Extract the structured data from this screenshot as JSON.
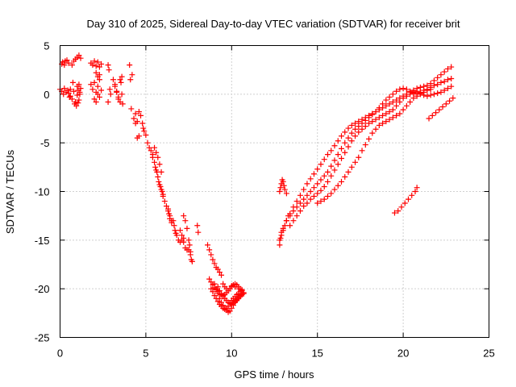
{
  "chart_data": {
    "type": "scatter",
    "title": "Day 310 of 2025, Sidereal Day-to-day VTEC variation (SDTVAR) for receiver brit",
    "xlabel": "GPS time / hours",
    "ylabel": "SDTVAR / TECUs",
    "xlim": [
      0,
      25
    ],
    "ylim": [
      -25,
      5
    ],
    "xticks": [
      0,
      5,
      10,
      15,
      20,
      25
    ],
    "yticks": [
      5,
      0,
      -5,
      -10,
      -15,
      -20,
      -25
    ],
    "xtick_labels": [
      "0",
      "5",
      "10",
      "15",
      "20",
      "25"
    ],
    "ytick_labels": [
      "5",
      "0",
      "-5",
      "-10",
      "-15",
      "-20",
      "-25"
    ],
    "grid": true,
    "marker": "+",
    "color": "#ff0000",
    "series": [
      {
        "name": "SDTVAR",
        "x": [
          0.0,
          0.1,
          0.2,
          0.25,
          0.35,
          0.45,
          0.5,
          0.55,
          0.6,
          0.1,
          0.15,
          0.25,
          0.3,
          0.4,
          0.5,
          0.6,
          0.7,
          0.8,
          0.9,
          1.0,
          1.05,
          1.1,
          1.15,
          0.7,
          0.8,
          0.9,
          1.0,
          1.1,
          1.2,
          0.75,
          0.85,
          0.95,
          1.05,
          1.15,
          1.0,
          1.1,
          1.2,
          1.8,
          1.9,
          2.0,
          2.1,
          2.2,
          2.3,
          2.4,
          1.8,
          1.9,
          2.0,
          2.1,
          2.2,
          2.3,
          2.0,
          2.1,
          2.2,
          2.3,
          2.4,
          2.1,
          2.2,
          2.3,
          2.8,
          2.85,
          2.9,
          2.95,
          2.8,
          3.1,
          3.2,
          3.3,
          3.4,
          3.5,
          3.55,
          3.6,
          3.65,
          3.2,
          3.3,
          3.4,
          3.5,
          3.6,
          4.05,
          4.1,
          4.2,
          4.15,
          4.3,
          4.4,
          4.5,
          4.4,
          4.5,
          4.6,
          4.6,
          4.7,
          4.8,
          4.85,
          4.9,
          5.0,
          5.1,
          5.2,
          5.3,
          5.4,
          5.4,
          5.5,
          5.55,
          5.6,
          5.65,
          5.7,
          5.75,
          5.8,
          5.85,
          5.9,
          5.95,
          6.0,
          5.5,
          5.6,
          5.7,
          5.8,
          5.9,
          6.0,
          6.1,
          6.2,
          6.3,
          6.35,
          6.4,
          6.5,
          6.3,
          6.4,
          6.5,
          6.6,
          6.65,
          6.7,
          6.75,
          6.8,
          6.9,
          7.0,
          7.1,
          7.2,
          7.0,
          7.1,
          7.2,
          7.3,
          7.4,
          7.2,
          7.3,
          7.4,
          7.5,
          7.6,
          7.65,
          7.7,
          7.5,
          7.55,
          7.6,
          8.0,
          8.05,
          8.6,
          8.7,
          8.8,
          8.9,
          9.0,
          9.1,
          9.2,
          9.3,
          9.4,
          8.7,
          8.8,
          8.9,
          9.0,
          9.1,
          9.2,
          9.3,
          9.4,
          9.5,
          9.6,
          9.7,
          9.8,
          9.9,
          10.0,
          10.1,
          10.2,
          10.3,
          10.4,
          10.5,
          8.8,
          8.9,
          9.0,
          9.1,
          9.2,
          9.3,
          9.4,
          9.5,
          9.6,
          9.7,
          9.8,
          9.9,
          10.0,
          10.1,
          10.2,
          10.3,
          10.4,
          10.5,
          10.6,
          9.0,
          9.1,
          9.2,
          9.3,
          9.4,
          9.5,
          9.6,
          9.7,
          9.8,
          9.9,
          10.0,
          10.1,
          10.2,
          10.3,
          10.4,
          10.5,
          10.6,
          10.7,
          9.2,
          9.3,
          9.4,
          9.5,
          9.6,
          9.7,
          9.8,
          9.9,
          10.0,
          10.1,
          10.2,
          10.3,
          10.4,
          10.5,
          10.6,
          10.7,
          9.5,
          9.6,
          9.7,
          9.8,
          9.9,
          10.0,
          10.2,
          10.4,
          10.6,
          12.8,
          12.85,
          12.9,
          12.95,
          13.0,
          13.05,
          13.1,
          13.2,
          12.8,
          12.9,
          13.0,
          13.1,
          13.2,
          13.3,
          12.8,
          12.85,
          12.9,
          13.0,
          13.2,
          13.4,
          13.6,
          13.8,
          14.0,
          14.2,
          14.4,
          14.6,
          14.8,
          15.0,
          15.2,
          15.4,
          15.6,
          15.8,
          16.0,
          16.2,
          16.4,
          16.6,
          16.8,
          17.0,
          17.2,
          17.4,
          17.6,
          17.8,
          18.0,
          18.2,
          18.4,
          18.6,
          18.8,
          19.0,
          19.2,
          19.4,
          19.6,
          19.8,
          20.0,
          20.2,
          20.4,
          20.6,
          20.8,
          21.0,
          21.2,
          21.4,
          21.6,
          21.8,
          22.0,
          22.2,
          22.4,
          22.6,
          22.8,
          13.2,
          13.4,
          13.6,
          13.8,
          14.0,
          14.2,
          14.4,
          14.6,
          14.8,
          15.0,
          15.2,
          15.4,
          15.6,
          15.8,
          16.0,
          16.2,
          16.4,
          16.6,
          16.8,
          17.0,
          17.2,
          17.4,
          17.6,
          17.8,
          18.0,
          18.2,
          18.4,
          18.6,
          18.8,
          19.0,
          19.2,
          19.4,
          19.6,
          19.8,
          20.0,
          20.2,
          20.4,
          20.6,
          20.8,
          21.0,
          21.2,
          21.4,
          21.6,
          21.8,
          22.0,
          22.2,
          22.4,
          22.6,
          22.8,
          13.4,
          13.6,
          13.8,
          14.0,
          14.2,
          14.4,
          14.6,
          14.8,
          15.0,
          15.2,
          15.4,
          15.6,
          15.8,
          16.0,
          16.2,
          16.4,
          16.6,
          16.8,
          17.0,
          17.2,
          17.4,
          17.6,
          17.8,
          18.0,
          18.2,
          18.4,
          18.6,
          18.8,
          19.0,
          19.2,
          19.4,
          19.6,
          19.8,
          20.0,
          20.2,
          20.4,
          20.6,
          20.8,
          21.0,
          21.2,
          21.4,
          21.6,
          21.8,
          22.0,
          22.2,
          22.4,
          22.6,
          22.8,
          15.0,
          15.2,
          15.4,
          15.6,
          15.8,
          16.0,
          16.2,
          16.4,
          16.6,
          16.8,
          17.0,
          17.2,
          17.4,
          17.6,
          17.8,
          18.0,
          18.2,
          18.4,
          18.6,
          18.8,
          19.0,
          19.2,
          19.4,
          19.6,
          19.8,
          20.0,
          20.2,
          20.4,
          20.6,
          20.8,
          21.0,
          21.2,
          21.4,
          21.6,
          19.5,
          19.7,
          19.9,
          20.1,
          20.3,
          20.5,
          20.7,
          20.8,
          21.5,
          21.7,
          21.9,
          22.1,
          22.3,
          22.5,
          22.7,
          22.9
        ],
        "y": [
          0.5,
          0.3,
          0.0,
          0.6,
          0.2,
          0.4,
          0.1,
          -0.3,
          0.5,
          3.1,
          3.3,
          3.0,
          3.4,
          3.5,
          3.2,
          -0.2,
          -0.5,
          0.3,
          -0.8,
          -0.1,
          0.4,
          -0.6,
          0.2,
          3.0,
          3.4,
          3.6,
          3.8,
          4.0,
          3.7,
          1.2,
          -1.0,
          -1.2,
          -0.9,
          0.0,
          0.8,
          1.0,
          0.6,
          3.2,
          3.0,
          3.4,
          2.9,
          3.3,
          2.8,
          3.1,
          1.0,
          0.5,
          1.2,
          0.2,
          0.8,
          1.5,
          -0.5,
          -0.8,
          0.0,
          -0.3,
          0.4,
          2.2,
          1.8,
          2.0,
          3.0,
          2.5,
          0.5,
          0.0,
          -0.8,
          1.5,
          1.0,
          0.3,
          -0.5,
          -0.8,
          1.2,
          0.0,
          -1.0,
          0.8,
          0.2,
          -0.3,
          1.5,
          1.8,
          3.0,
          1.5,
          2.0,
          -1.5,
          -2.5,
          -3.0,
          -2.8,
          -2.0,
          -4.5,
          -4.3,
          -1.8,
          -2.2,
          -3.0,
          -3.5,
          -3.8,
          -4.2,
          -5.0,
          -5.5,
          -5.8,
          -6.2,
          -6.5,
          -7.0,
          -7.5,
          -7.8,
          -8.0,
          -8.5,
          -9.0,
          -9.3,
          -9.5,
          -9.8,
          -10.0,
          -10.3,
          -5.5,
          -6.0,
          -6.5,
          -7.2,
          -8.0,
          -10.5,
          -11.0,
          -11.5,
          -12.0,
          -12.3,
          -12.8,
          -13.0,
          -11.8,
          -12.5,
          -13.2,
          -13.0,
          -13.5,
          -14.0,
          -14.3,
          -14.5,
          -15.0,
          -15.2,
          -15.0,
          -14.8,
          -14.0,
          -14.5,
          -15.2,
          -15.8,
          -16.0,
          -12.5,
          -13.0,
          -13.8,
          -16.0,
          -16.5,
          -17.0,
          -17.2,
          -15.0,
          -15.5,
          -16.2,
          -13.5,
          -14.2,
          -15.5,
          -16.0,
          -16.5,
          -17.0,
          -17.4,
          -17.8,
          -18.0,
          -18.3,
          -18.6,
          -19.0,
          -19.3,
          -19.6,
          -19.9,
          -20.1,
          -20.3,
          -20.5,
          -20.6,
          -20.7,
          -20.6,
          -20.4,
          -20.2,
          -20.0,
          -19.8,
          -19.6,
          -19.5,
          -19.6,
          -19.8,
          -20.0,
          -20.0,
          -20.3,
          -20.7,
          -21.0,
          -21.3,
          -21.6,
          -21.8,
          -22.0,
          -22.1,
          -22.0,
          -21.8,
          -21.5,
          -21.2,
          -21.0,
          -20.8,
          -20.6,
          -20.5,
          -20.3,
          -20.1,
          -19.5,
          -20.0,
          -20.5,
          -21.0,
          -21.4,
          -21.7,
          -22.0,
          -22.2,
          -22.4,
          -22.3,
          -22.0,
          -21.7,
          -21.4,
          -21.2,
          -21.0,
          -20.8,
          -20.6,
          -20.4,
          -19.8,
          -20.2,
          -20.5,
          -20.8,
          -21.0,
          -21.2,
          -21.4,
          -21.5,
          -21.6,
          -21.5,
          -21.3,
          -21.1,
          -20.9,
          -20.7,
          -20.6,
          -20.5,
          -19.5,
          -19.8,
          -20.0,
          -20.2,
          -20.0,
          -19.7,
          -19.8,
          -20.0,
          -20.2,
          -10.0,
          -9.6,
          -9.2,
          -8.8,
          -9.0,
          -9.4,
          -9.8,
          -10.2,
          -15.0,
          -14.5,
          -14.0,
          -13.5,
          -13.0,
          -12.5,
          -15.5,
          -14.8,
          -14.2,
          -13.8,
          -13.0,
          -12.3,
          -11.6,
          -11.0,
          -10.4,
          -9.8,
          -9.2,
          -8.7,
          -8.2,
          -7.7,
          -7.2,
          -6.7,
          -6.2,
          -5.8,
          -5.3,
          -4.8,
          -4.3,
          -3.9,
          -3.5,
          -3.2,
          -3.0,
          -2.8,
          -2.6,
          -2.4,
          -2.2,
          -2.0,
          -1.8,
          -1.6,
          -1.4,
          -1.2,
          -1.0,
          -0.8,
          -0.6,
          -0.4,
          -0.2,
          0.0,
          0.2,
          0.4,
          0.6,
          0.7,
          0.8,
          0.9,
          1.1,
          1.4,
          1.7,
          2.0,
          2.3,
          2.6,
          2.8,
          -13.0,
          -12.5,
          -12.0,
          -11.6,
          -11.2,
          -10.8,
          -10.4,
          -10.0,
          -9.6,
          -9.2,
          -8.8,
          -8.4,
          -8.0,
          -7.4,
          -6.8,
          -6.2,
          -5.6,
          -5.0,
          -4.5,
          -4.0,
          -3.6,
          -3.3,
          -3.0,
          -2.7,
          -2.4,
          -2.1,
          -1.8,
          -1.4,
          -1.0,
          -0.6,
          -0.3,
          0.0,
          0.3,
          0.5,
          0.6,
          0.5,
          0.3,
          0.1,
          0.0,
          0.2,
          0.4,
          0.5,
          0.7,
          0.9,
          1.0,
          1.2,
          1.3,
          1.5,
          1.6,
          -13.5,
          -13.0,
          -12.5,
          -12.0,
          -11.5,
          -11.2,
          -10.8,
          -10.5,
          -10.2,
          -9.9,
          -9.5,
          -9.0,
          -8.4,
          -7.8,
          -7.2,
          -6.6,
          -6.0,
          -5.4,
          -4.8,
          -4.3,
          -3.9,
          -3.6,
          -3.3,
          -3.0,
          -2.8,
          -2.6,
          -2.4,
          -2.2,
          -2.0,
          -1.8,
          -1.6,
          -1.2,
          -0.8,
          -0.4,
          -0.2,
          0.0,
          0.2,
          0.3,
          0.1,
          -0.1,
          -0.2,
          -0.1,
          0.0,
          0.1,
          0.2,
          0.4,
          0.6,
          0.8,
          -11.2,
          -11.0,
          -10.8,
          -10.5,
          -10.2,
          -9.8,
          -9.4,
          -9.0,
          -8.5,
          -8.0,
          -7.5,
          -7.0,
          -6.5,
          -5.8,
          -5.2,
          -4.6,
          -4.0,
          -3.6,
          -3.2,
          -3.0,
          -2.8,
          -2.6,
          -2.4,
          -2.2,
          -2.0,
          -1.6,
          -1.2,
          -0.8,
          -0.4,
          -0.2,
          0.0,
          0.2,
          0.4,
          0.5,
          -12.2,
          -12.0,
          -11.6,
          -11.2,
          -10.8,
          -10.4,
          -10.0,
          -9.6,
          -2.5,
          -2.2,
          -1.9,
          -1.6,
          -1.3,
          -1.0,
          -0.7,
          -0.4
        ]
      }
    ]
  }
}
